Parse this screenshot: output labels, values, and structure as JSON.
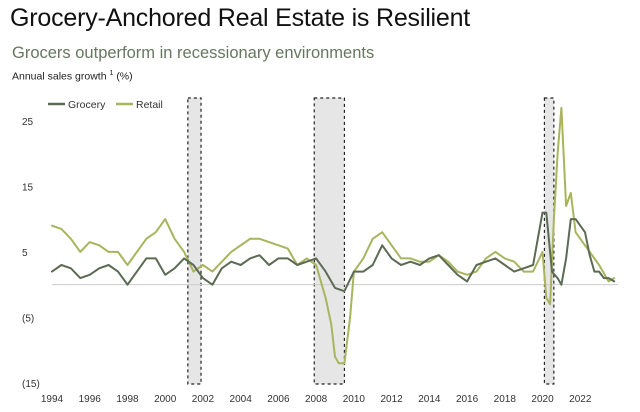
{
  "chart_data": {
    "type": "line",
    "title": "Grocery-Anchored Real Estate is Resilient",
    "subtitle": "Grocers outperform in recessionary environments",
    "ylabel": "Annual sales growth",
    "ylabel_footnote": "1",
    "ylabel_unit": "(%)",
    "xlabel": "",
    "xlim": [
      1994,
      2024
    ],
    "ylim": [
      -15,
      30
    ],
    "y_ticks": [
      {
        "value": 25,
        "label": "25"
      },
      {
        "value": 15,
        "label": "15"
      },
      {
        "value": 5,
        "label": "5"
      },
      {
        "value": -5,
        "label": "(5)"
      },
      {
        "value": -15,
        "label": "(15)"
      }
    ],
    "x_ticks": [
      "1994",
      "1996",
      "1998",
      "2000",
      "2002",
      "2004",
      "2006",
      "2008",
      "2010",
      "2012",
      "2014",
      "2016",
      "2018",
      "2020",
      "2022"
    ],
    "recessions": [
      [
        2001.2,
        2001.9
      ],
      [
        2007.9,
        2009.5
      ],
      [
        2020.1,
        2020.6
      ]
    ],
    "legend": "top-left",
    "colors": {
      "grocery": "#5c6b54",
      "retail": "#a9b45e",
      "zero_line": "#cccccc",
      "recession_fill": "#e6e6e6",
      "recession_border": "#222222"
    },
    "series": [
      {
        "name": "Grocery",
        "x": [
          1994,
          1994.5,
          1995,
          1995.5,
          1996,
          1996.5,
          1997,
          1997.5,
          1998,
          1998.5,
          1999,
          1999.5,
          2000,
          2000.5,
          2001,
          2001.5,
          2002,
          2002.5,
          2003,
          2003.5,
          2004,
          2004.5,
          2005,
          2005.5,
          2006,
          2006.5,
          2007,
          2007.5,
          2008,
          2008.5,
          2009,
          2009.5,
          2010,
          2010.5,
          2011,
          2011.5,
          2012,
          2012.5,
          2013,
          2013.5,
          2014,
          2014.5,
          2015,
          2015.5,
          2016,
          2016.5,
          2017,
          2017.5,
          2018,
          2018.5,
          2019,
          2019.5,
          2020,
          2020.2,
          2020.5,
          2020.8,
          2021,
          2021.25,
          2021.5,
          2021.75,
          2022,
          2022.25,
          2022.5,
          2022.75,
          2023,
          2023.25,
          2023.5,
          2023.8
        ],
        "values": [
          2,
          3,
          2.5,
          1,
          1.5,
          2.5,
          3,
          2,
          0,
          2,
          4,
          4,
          1.5,
          2.5,
          4,
          3,
          1,
          0,
          2.5,
          3.5,
          3,
          4,
          4.5,
          3,
          4,
          4,
          3,
          3.5,
          4,
          2,
          -0.5,
          -1,
          2,
          2,
          3,
          6,
          4,
          3,
          3.5,
          3,
          4,
          4.5,
          3,
          1.5,
          0.5,
          3,
          3.5,
          4,
          3,
          2,
          2.5,
          3,
          11,
          11,
          2,
          1,
          0,
          4,
          10,
          10,
          9,
          8,
          4.5,
          2,
          2,
          1,
          1,
          0.5
        ]
      },
      {
        "name": "Retail",
        "x": [
          1994,
          1994.5,
          1995,
          1995.5,
          1996,
          1996.5,
          1997,
          1997.5,
          1998,
          1998.5,
          1999,
          1999.5,
          2000,
          2000.5,
          2001,
          2001.5,
          2002,
          2002.5,
          2003,
          2003.5,
          2004,
          2004.5,
          2005,
          2005.5,
          2006,
          2006.5,
          2007,
          2007.5,
          2008,
          2008.5,
          2008.8,
          2009,
          2009.2,
          2009.5,
          2009.8,
          2010,
          2010.5,
          2011,
          2011.5,
          2012,
          2012.5,
          2013,
          2013.5,
          2014,
          2014.5,
          2015,
          2015.5,
          2016,
          2016.5,
          2017,
          2017.5,
          2018,
          2018.5,
          2019,
          2019.5,
          2020,
          2020.2,
          2020.4,
          2020.6,
          2020.8,
          2021,
          2021.25,
          2021.5,
          2021.75,
          2022,
          2022.5,
          2023,
          2023.5,
          2023.8
        ],
        "values": [
          9,
          8.5,
          7,
          5,
          6.5,
          6,
          5,
          5,
          3,
          5,
          7,
          8,
          10,
          7,
          5,
          2,
          3,
          2,
          3.5,
          5,
          6,
          7,
          7,
          6.5,
          6,
          5.5,
          3,
          4,
          3,
          -2,
          -6,
          -11,
          -12,
          -12,
          -5,
          2,
          4,
          7,
          8,
          6,
          4,
          4,
          3.5,
          3.5,
          4.5,
          3.5,
          2,
          1.5,
          2,
          4,
          5,
          4,
          3.5,
          2,
          2,
          5,
          -2,
          -3,
          10,
          20,
          27,
          12,
          14,
          8,
          7,
          5,
          3,
          0.5,
          1
        ]
      }
    ]
  }
}
